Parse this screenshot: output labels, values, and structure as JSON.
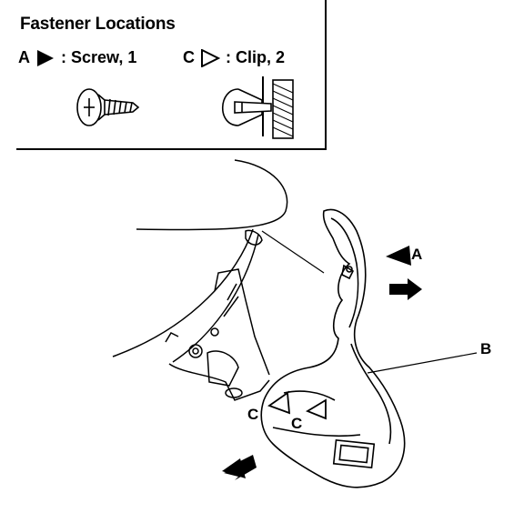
{
  "header": {
    "title": "Fastener Locations"
  },
  "legend": [
    {
      "key": "A",
      "symbol": "filled-triangle",
      "text": ": Screw, 1"
    },
    {
      "key": "C",
      "symbol": "outline-triangle",
      "text": ": Clip, 2"
    }
  ],
  "callouts": {
    "a": "A",
    "b": "B",
    "c1": "C",
    "c2": "C"
  },
  "icons": [
    "screw-icon",
    "clip-icon",
    "arrow-icon"
  ],
  "colors": {
    "ink": "#000000",
    "paper": "#ffffff"
  }
}
